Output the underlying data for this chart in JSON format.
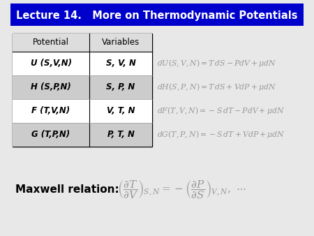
{
  "title": "Lecture 14.   More on Thermodynamic Potentials",
  "title_bg": "#0000cc",
  "title_color": "#ffffff",
  "table_headers": [
    "Potential",
    "Variables"
  ],
  "table_rows": [
    [
      "U (S,V,N)",
      "S, V, N"
    ],
    [
      "H (S,P,N)",
      "S, P, N"
    ],
    [
      "F (T,V,N)",
      "V, T, N"
    ],
    [
      "G (T,P,N)",
      "P, T, N"
    ]
  ],
  "eq_color": "#999999",
  "bg_color": "#e8e8e8",
  "maxwell_label": "Maxwell relation:",
  "row_colors": [
    "#ffffff",
    "#cccccc",
    "#ffffff",
    "#cccccc"
  ]
}
